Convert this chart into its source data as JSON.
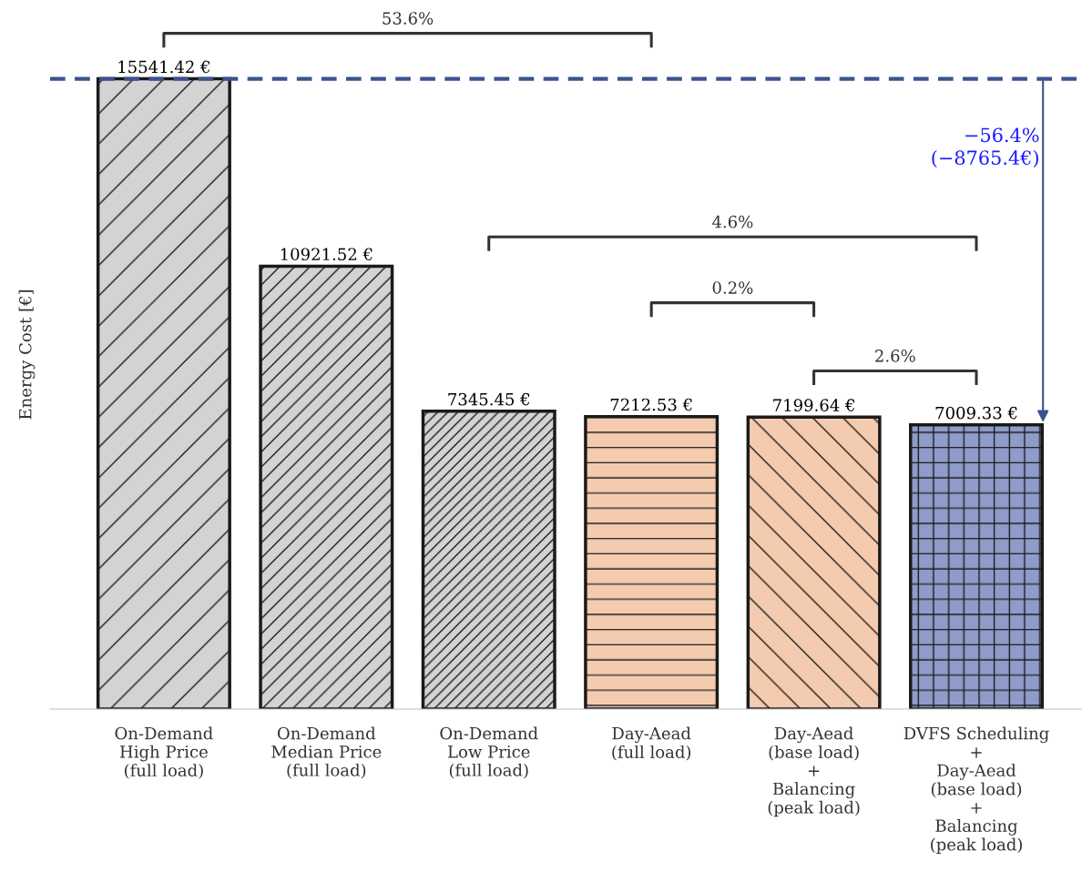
{
  "chart_data": {
    "type": "bar",
    "relative": false,
    "ylabel": "Energy Cost [€]",
    "categories": [
      "On-Demand\nHigh Price\n(full load)",
      "On-Demand\nMedian Price\n(full load)",
      "On-Demand\nLow Price\n(full load)",
      "Day-Aead\n(full load)",
      "Day-Aead\n(base load)\n+\nBalancing\n(peak load)",
      "DVFS Scheduling\n+\nDay-Aead\n(base load)\n+\nBalancing\n(peak load)"
    ],
    "values": [
      15541.42,
      10921.52,
      7345.45,
      7212.53,
      7199.64,
      7009.33
    ],
    "colors": [
      "#d3d3d3",
      "#d3d3d3",
      "#d3d3d3",
      "#f5cbb0",
      "#f5cbb0",
      "#8e9cc9"
    ],
    "value_labels": [
      "15541.42 €",
      "10921.52 €",
      "7345.45 €",
      "7212.53 €",
      "7199.64 €",
      "7009.33 €"
    ],
    "ref_lines": [
      {
        "axis": "y",
        "value": 15541.42,
        "color": "#3c528f",
        "line_style": "dashed"
      }
    ],
    "annotations": [
      "53.6%",
      "4.6%",
      "0.2%",
      "2.6%",
      "−56.4%\n(−8765.4€)"
    ],
    "grid": false
  }
}
